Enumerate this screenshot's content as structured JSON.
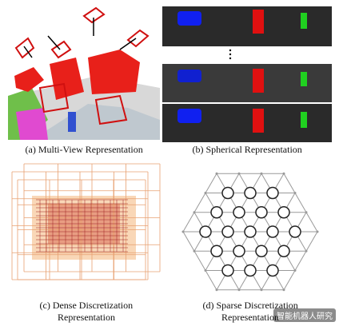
{
  "panels": [
    {
      "caption": [
        "(a) Multi-View Representation"
      ]
    },
    {
      "caption": [
        "(b) Spherical Representation"
      ]
    },
    {
      "caption": [
        "(c) Dense Discretization",
        "Representation"
      ]
    },
    {
      "caption": [
        "(d) Sparse Discretization",
        "Representation"
      ]
    }
  ],
  "watermark": "智能机器人研究"
}
